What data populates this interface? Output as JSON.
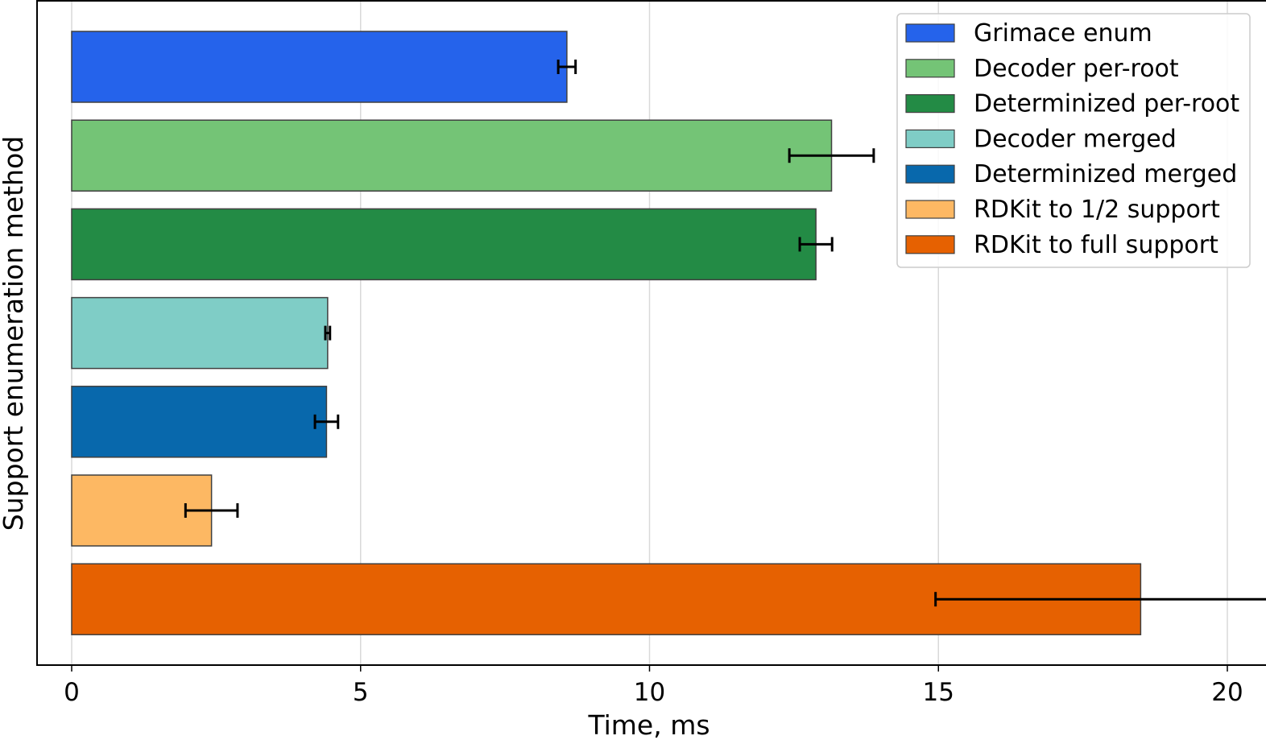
{
  "chart_data": {
    "type": "bar",
    "orientation": "horizontal",
    "xlabel": "Time, ms",
    "ylabel": "Support enumeration method",
    "xlim": [
      -0.6,
      20.6
    ],
    "xticks": [
      0,
      5,
      10,
      15,
      20
    ],
    "grid": "vertical",
    "legend_position": "top-right",
    "series": [
      {
        "name": "Grimace enum",
        "value": 8.57,
        "error": 0.15,
        "color": "#2563EB"
      },
      {
        "name": "Decoder per-root",
        "value": 13.15,
        "error": 0.73,
        "color": "#74C476"
      },
      {
        "name": "Determinized per-root",
        "value": 12.88,
        "error": 0.28,
        "color": "#238B45"
      },
      {
        "name": "Decoder merged",
        "value": 4.43,
        "error": 0.04,
        "color": "#7FCDC6"
      },
      {
        "name": "Determinized merged",
        "value": 4.41,
        "error": 0.2,
        "color": "#0868AC"
      },
      {
        "name": "RDKit to 1/2 support",
        "value": 2.42,
        "error": 0.45,
        "color": "#FDB863"
      },
      {
        "name": "RDKit to full support",
        "value": 18.5,
        "error": 3.55,
        "color": "#E66101"
      }
    ]
  }
}
